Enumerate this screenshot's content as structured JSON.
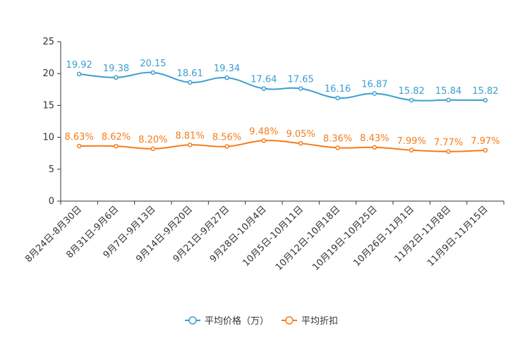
{
  "chart_data": {
    "type": "line",
    "title": "",
    "xlabel": "",
    "ylabel": "",
    "ylim": [
      0,
      25
    ],
    "yticks": [
      0,
      5,
      10,
      15,
      20,
      25
    ],
    "legend_position": "bottom-center",
    "categories": [
      "8月24日-8月30日",
      "8月31日-9月6日",
      "9月7日-9月13日",
      "9月14日-9月20日",
      "9月21日-9月27日",
      "9月28日-10月4日",
      "10月5日-10月11日",
      "10月12日-10月18日",
      "10月19日-10月25日",
      "10月26日-11月1日",
      "11月2日-11月8日",
      "11月9日-11月15日"
    ],
    "series": [
      {
        "name": "平均价格（万）",
        "color": "#3a9fd0",
        "values": [
          19.92,
          19.38,
          20.15,
          18.61,
          19.34,
          17.64,
          17.65,
          16.16,
          16.87,
          15.82,
          15.84,
          15.82
        ],
        "labels": [
          "19.92",
          "19.38",
          "20.15",
          "18.61",
          "19.34",
          "17.64",
          "17.65",
          "16.16",
          "16.87",
          "15.82",
          "15.84",
          "15.82"
        ]
      },
      {
        "name": "平均折扣",
        "color": "#f47c1b",
        "values": [
          8.63,
          8.62,
          8.2,
          8.81,
          8.56,
          9.48,
          9.05,
          8.36,
          8.43,
          7.99,
          7.77,
          7.97
        ],
        "labels": [
          "8.63%",
          "8.62%",
          "8.20%",
          "8.81%",
          "8.56%",
          "9.48%",
          "9.05%",
          "8.36%",
          "8.43%",
          "7.99%",
          "7.77%",
          "7.97%"
        ]
      }
    ]
  }
}
